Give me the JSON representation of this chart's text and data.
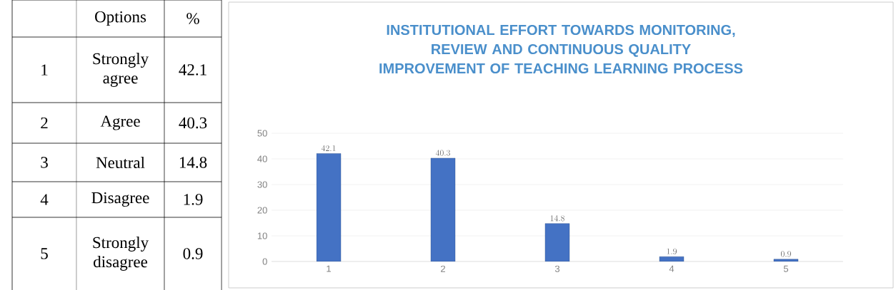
{
  "chart_data": [
    {
      "type": "other",
      "annotations": [
        "Options",
        "%",
        "1",
        "2",
        "3",
        "4",
        "5"
      ],
      "categories": [
        "Strongly agree",
        "Agree",
        "Neutral",
        "Disagree",
        "Strongly disagree"
      ],
      "values": [
        42.1,
        40.3,
        14.8,
        1.9,
        0.9
      ],
      "data_labels": true
    },
    {
      "type": "bar",
      "title": "INSTITUTIONAL EFFORT TOWARDS MONITORING, REVIEW AND CONTINUOUS QUALITY IMPROVEMENT OF TEACHING LEARNING PROCESS",
      "categories": [
        "1",
        "2",
        "3",
        "4",
        "5"
      ],
      "values": [
        42.1,
        40.3,
        14.8,
        1.9,
        0.9
      ],
      "color": "#4472c4",
      "ylim": [
        0,
        50
      ],
      "yticks": [
        0,
        10,
        20,
        30,
        40,
        50
      ],
      "grid": "y",
      "data_labels": true
    }
  ]
}
